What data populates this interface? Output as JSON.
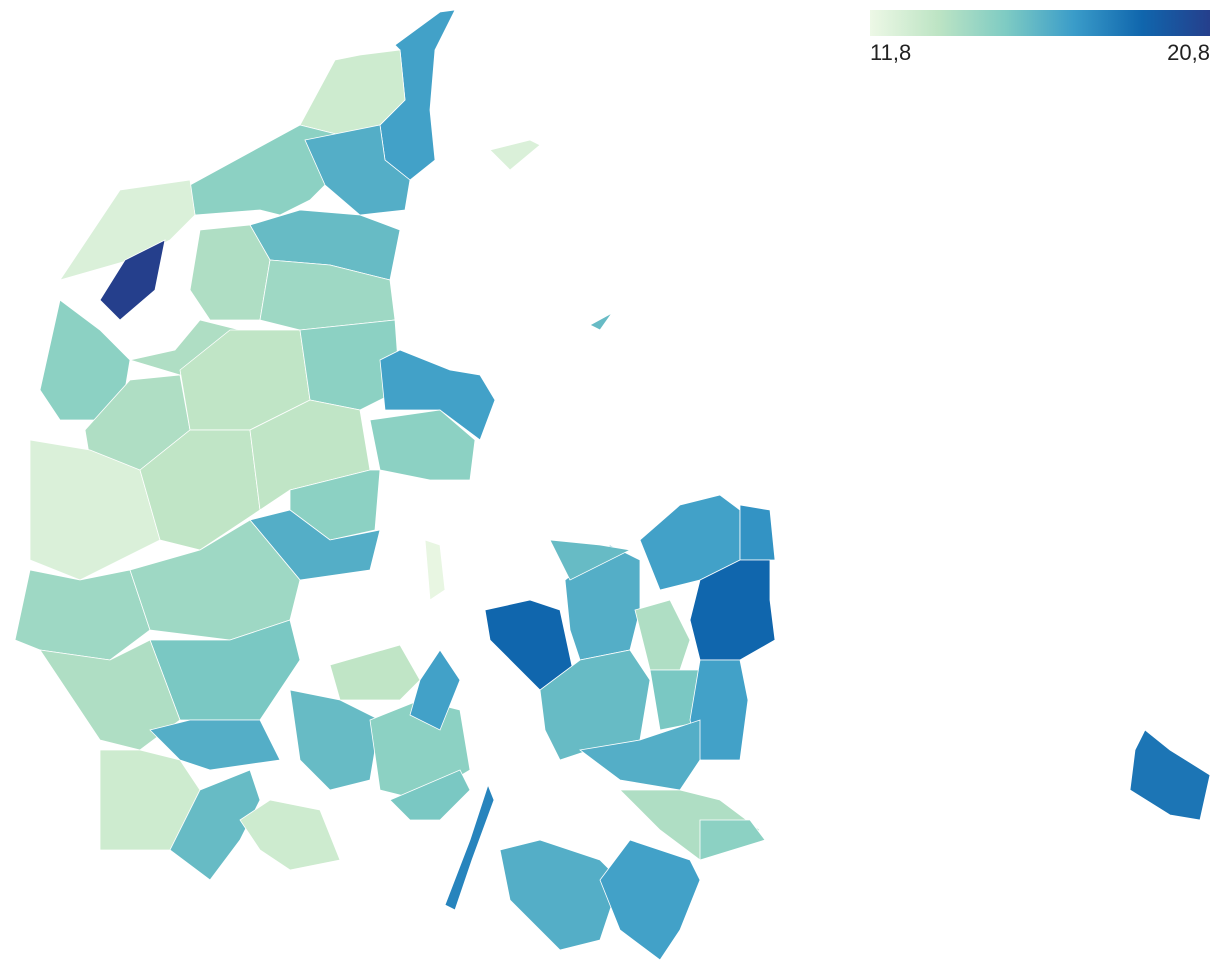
{
  "legend": {
    "min": {
      "value": 11.8,
      "label": "11,8"
    },
    "max": {
      "value": 20.8,
      "label": "20,8"
    },
    "colors": [
      "#edf8e6",
      "#bde4c4",
      "#7ecbc3",
      "#3a9cc9",
      "#1066ad",
      "#253f8c"
    ]
  },
  "regions": {
    "values": [
      17,
      13,
      15,
      16.5,
      12.5,
      20.8,
      16,
      14,
      14.5,
      14,
      15,
      14,
      13.5,
      15,
      17,
      15,
      12.5,
      13.5,
      13.5,
      15,
      16.5,
      14.5,
      14.5,
      15.5,
      14,
      13,
      16.5,
      16,
      13,
      13.5,
      16,
      15,
      17,
      15.5,
      18,
      12,
      19,
      16.5,
      16,
      17,
      17.5,
      19,
      14,
      16,
      15.5,
      17,
      16.5,
      14,
      16.5,
      17,
      15,
      18.5,
      12.5,
      16
    ]
  }
}
